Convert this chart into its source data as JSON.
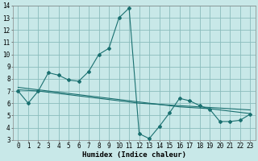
{
  "bg_color": "#c8e8e8",
  "grid_color": "#8abcbc",
  "line_color": "#1a7070",
  "line1_x": [
    0,
    1,
    2,
    3,
    4,
    5,
    6,
    7,
    8,
    9,
    10,
    11,
    12,
    13,
    14,
    15,
    16,
    17,
    18,
    19,
    20,
    21,
    22,
    23
  ],
  "line1_y": [
    7.0,
    6.0,
    7.0,
    8.5,
    8.3,
    7.9,
    7.8,
    8.6,
    10.0,
    10.5,
    13.0,
    13.8,
    3.5,
    3.1,
    4.1,
    5.2,
    6.4,
    6.2,
    5.8,
    5.5,
    4.5,
    4.5,
    4.6,
    5.1
  ],
  "line2_x": [
    0,
    1,
    2,
    3,
    4,
    5,
    6,
    7,
    8,
    9,
    10,
    11,
    12,
    13,
    14,
    15,
    16,
    17,
    18,
    19,
    20,
    21,
    22,
    23
  ],
  "line2_y": [
    7.1,
    7.05,
    7.0,
    6.9,
    6.8,
    6.7,
    6.6,
    6.5,
    6.4,
    6.3,
    6.2,
    6.1,
    6.0,
    5.95,
    5.9,
    5.85,
    5.8,
    5.75,
    5.7,
    5.65,
    5.6,
    5.55,
    5.5,
    5.45
  ],
  "line3_x": [
    0,
    1,
    2,
    3,
    4,
    5,
    6,
    7,
    8,
    9,
    10,
    11,
    12,
    13,
    14,
    15,
    16,
    17,
    18,
    19,
    20,
    21,
    22,
    23
  ],
  "line3_y": [
    7.3,
    7.2,
    7.1,
    7.0,
    6.9,
    6.8,
    6.7,
    6.6,
    6.5,
    6.4,
    6.3,
    6.2,
    6.1,
    6.0,
    5.9,
    5.8,
    5.7,
    5.65,
    5.6,
    5.55,
    5.45,
    5.35,
    5.25,
    5.15
  ],
  "xlim": [
    -0.5,
    23.5
  ],
  "ylim": [
    3,
    14
  ],
  "xticks": [
    0,
    1,
    2,
    3,
    4,
    5,
    6,
    7,
    8,
    9,
    10,
    11,
    12,
    13,
    14,
    15,
    16,
    17,
    18,
    19,
    20,
    21,
    22,
    23
  ],
  "yticks": [
    3,
    4,
    5,
    6,
    7,
    8,
    9,
    10,
    11,
    12,
    13,
    14
  ],
  "xlabel": "Humidex (Indice chaleur)",
  "xlabel_fontsize": 6.5,
  "tick_fontsize": 5.5,
  "markersize": 2.0
}
